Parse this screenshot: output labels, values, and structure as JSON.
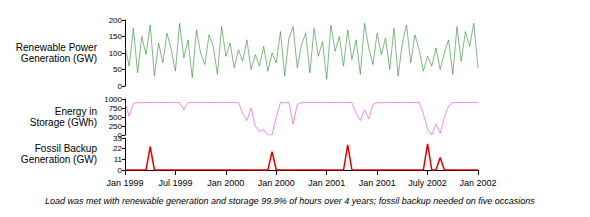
{
  "chart_data": [
    {
      "type": "line",
      "ylabel": "Renewable Power\nGeneration (GW)",
      "color": "#2a8a2a",
      "grid": false,
      "tick_labels": "y",
      "categories": [
        "Jan 1999",
        null,
        null,
        null,
        null,
        null,
        null,
        null,
        null,
        null,
        null,
        null,
        "Jul 1999",
        null,
        null,
        null,
        null,
        null,
        null,
        null,
        null,
        null,
        null,
        null,
        "Jan 2000",
        null,
        null,
        null,
        null,
        null,
        null,
        null,
        null,
        null,
        null,
        null,
        "Jan 2000",
        null,
        null,
        null,
        null,
        null,
        null,
        null,
        null,
        null,
        null,
        null,
        "Jan 2001",
        null,
        null,
        null,
        null,
        null,
        null,
        null,
        null,
        null,
        null,
        null,
        "Jan 2001",
        null,
        null,
        null,
        null,
        null,
        null,
        null,
        null,
        null,
        null,
        null,
        "July 2002",
        null,
        null,
        null,
        null,
        null,
        null,
        null,
        null,
        null,
        null,
        null,
        "Jan 2002"
      ],
      "values": [
        120,
        60,
        175,
        40,
        150,
        95,
        185,
        30,
        130,
        70,
        160,
        110,
        45,
        190,
        85,
        140,
        25,
        170,
        100,
        65,
        155,
        120,
        35,
        180,
        90,
        130,
        55,
        110,
        75,
        140,
        50,
        95,
        60,
        120,
        45,
        100,
        70,
        165,
        30,
        145,
        180,
        55,
        125,
        160,
        40,
        175,
        90,
        135,
        20,
        185,
        105,
        150,
        60,
        170,
        80,
        140,
        35,
        190,
        115,
        65,
        160,
        95,
        145,
        50,
        175,
        30,
        130,
        185,
        70,
        155,
        110,
        45,
        90,
        60,
        115,
        50,
        100,
        140,
        35,
        180,
        75,
        165,
        120,
        190,
        55
      ],
      "ylim": [
        0,
        200
      ],
      "yticks": [
        0,
        50,
        100,
        150,
        200
      ]
    },
    {
      "type": "line",
      "ylabel": "Energy in\nStorage (GWh)",
      "color": "#e040e0",
      "grid": false,
      "tick_labels": "y",
      "categories": [
        "Jan 1999",
        null,
        null,
        null,
        null,
        null,
        null,
        null,
        null,
        null,
        null,
        null,
        "Jul 1999",
        null,
        null,
        null,
        null,
        null,
        null,
        null,
        null,
        null,
        null,
        null,
        "Jan 2000",
        null,
        null,
        null,
        null,
        null,
        null,
        null,
        null,
        null,
        null,
        null,
        "Jan 2000",
        null,
        null,
        null,
        null,
        null,
        null,
        null,
        null,
        null,
        null,
        null,
        "Jan 2001",
        null,
        null,
        null,
        null,
        null,
        null,
        null,
        null,
        null,
        null,
        null,
        "Jan 2001",
        null,
        null,
        null,
        null,
        null,
        null,
        null,
        null,
        null,
        null,
        null,
        "July 2002",
        null,
        null,
        null,
        null,
        null,
        null,
        null,
        null,
        null,
        null,
        null,
        "Jan 2002"
      ],
      "values": [
        900,
        520,
        880,
        900,
        900,
        900,
        900,
        900,
        900,
        900,
        900,
        900,
        900,
        900,
        700,
        900,
        900,
        900,
        900,
        900,
        900,
        900,
        900,
        900,
        900,
        900,
        900,
        900,
        600,
        400,
        750,
        250,
        100,
        150,
        0,
        0,
        500,
        900,
        900,
        900,
        300,
        850,
        900,
        900,
        900,
        900,
        900,
        900,
        900,
        900,
        900,
        900,
        900,
        900,
        900,
        600,
        400,
        700,
        450,
        850,
        900,
        900,
        900,
        900,
        900,
        900,
        900,
        900,
        900,
        900,
        900,
        600,
        150,
        0,
        300,
        50,
        500,
        800,
        900,
        900,
        900,
        900,
        900,
        900,
        900
      ],
      "ylim": [
        0,
        1000
      ],
      "yticks": [
        0,
        250,
        500,
        750,
        1000
      ]
    },
    {
      "type": "line",
      "ylabel": "Fossil Backup\nGeneration (GW)",
      "color": "#e00000",
      "grid": false,
      "categories": [
        "Jan 1999",
        null,
        null,
        null,
        null,
        null,
        null,
        null,
        null,
        null,
        null,
        null,
        "Jul 1999",
        null,
        null,
        null,
        null,
        null,
        null,
        null,
        null,
        null,
        null,
        null,
        "Jan 2000",
        null,
        null,
        null,
        null,
        null,
        null,
        null,
        null,
        null,
        null,
        null,
        "Jan 2000",
        null,
        null,
        null,
        null,
        null,
        null,
        null,
        null,
        null,
        null,
        null,
        "Jan 2001",
        null,
        null,
        null,
        null,
        null,
        null,
        null,
        null,
        null,
        null,
        null,
        "Jan 2001",
        null,
        null,
        null,
        null,
        null,
        null,
        null,
        null,
        null,
        null,
        null,
        "July 2002",
        null,
        null,
        null,
        null,
        null,
        null,
        null,
        null,
        null,
        null,
        null,
        "Jan 2002"
      ],
      "values": [
        0,
        0,
        0,
        0,
        0,
        0,
        24,
        0,
        0,
        0,
        0,
        0,
        0,
        0,
        0,
        0,
        0,
        0,
        0,
        0,
        0,
        0,
        0,
        0,
        0,
        0,
        0,
        0,
        0,
        0,
        0,
        0,
        0,
        0,
        0,
        19,
        0,
        0,
        0,
        0,
        0,
        0,
        0,
        0,
        0,
        0,
        0,
        0,
        0,
        0,
        0,
        0,
        0,
        26,
        0,
        0,
        0,
        0,
        0,
        0,
        0,
        0,
        0,
        0,
        0,
        0,
        0,
        0,
        0,
        0,
        0,
        0,
        27,
        0,
        0,
        13,
        0,
        0,
        0,
        0,
        0,
        0,
        0,
        0,
        0
      ],
      "ylim": [
        0,
        33
      ],
      "yticks": [
        0,
        11,
        22,
        33
      ]
    }
  ],
  "caption": "Load was met with renewable generation and storage 99.9% of hours over 4 years; fossil backup needed on five occasions"
}
